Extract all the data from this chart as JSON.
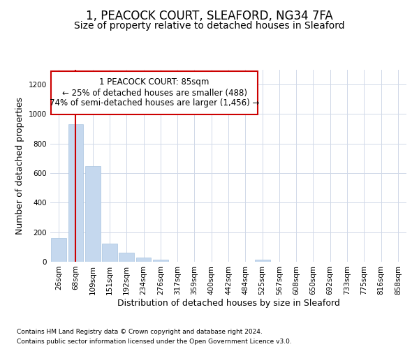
{
  "title": "1, PEACOCK COURT, SLEAFORD, NG34 7FA",
  "subtitle": "Size of property relative to detached houses in Sleaford",
  "xlabel": "Distribution of detached houses by size in Sleaford",
  "ylabel": "Number of detached properties",
  "categories": [
    "26sqm",
    "68sqm",
    "109sqm",
    "151sqm",
    "192sqm",
    "234sqm",
    "276sqm",
    "317sqm",
    "359sqm",
    "400sqm",
    "442sqm",
    "484sqm",
    "525sqm",
    "567sqm",
    "608sqm",
    "650sqm",
    "692sqm",
    "733sqm",
    "775sqm",
    "816sqm",
    "858sqm"
  ],
  "values": [
    160,
    930,
    650,
    125,
    60,
    30,
    15,
    0,
    0,
    0,
    0,
    0,
    15,
    0,
    0,
    0,
    0,
    0,
    0,
    0,
    0
  ],
  "bar_color": "#c5d8ee",
  "bar_edge_color": "#a8c4e0",
  "property_line_x": 1.0,
  "property_line_color": "#cc0000",
  "ylim": [
    0,
    1300
  ],
  "yticks": [
    0,
    200,
    400,
    600,
    800,
    1000,
    1200
  ],
  "annotation_line1": "1 PEACOCK COURT: 85sqm",
  "annotation_line2": "← 25% of detached houses are smaller (488)",
  "annotation_line3": "74% of semi-detached houses are larger (1,456) →",
  "annotation_box_color": "#ffffff",
  "annotation_box_edge": "#cc0000",
  "footer_line1": "Contains HM Land Registry data © Crown copyright and database right 2024.",
  "footer_line2": "Contains public sector information licensed under the Open Government Licence v3.0.",
  "background_color": "#ffffff",
  "plot_bg_color": "#ffffff",
  "grid_color": "#d0d8e8",
  "title_fontsize": 12,
  "subtitle_fontsize": 10,
  "axis_label_fontsize": 9,
  "tick_fontsize": 7.5,
  "annotation_fontsize": 8.5
}
